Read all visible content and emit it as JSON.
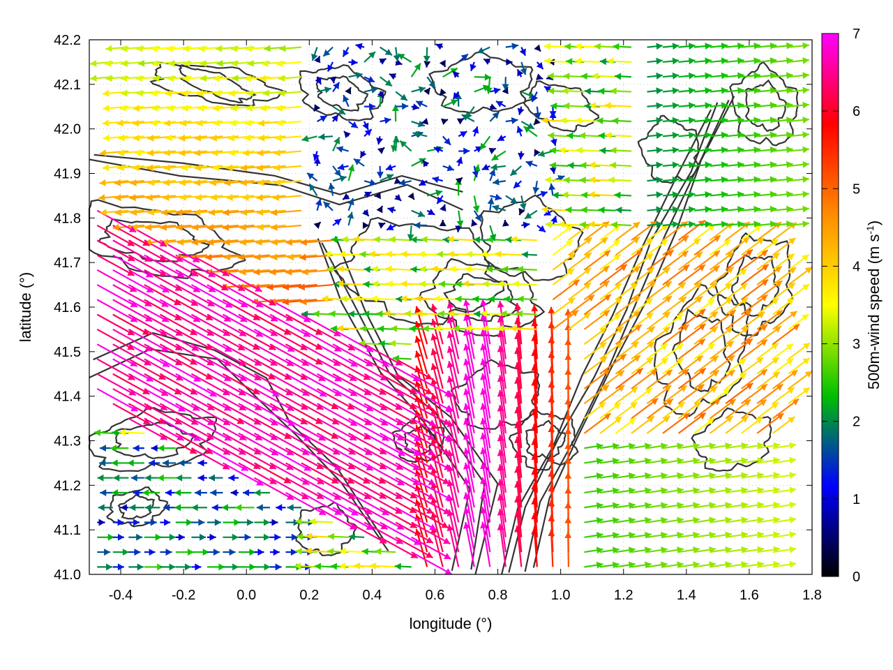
{
  "chart_data": {
    "type": "vector-field",
    "xlabel": "longitude (°)",
    "ylabel": "latitude (°)",
    "xlim": [
      -0.5,
      1.8
    ],
    "ylim": [
      41.0,
      42.2
    ],
    "xticks": [
      "-0.4",
      "-0.2",
      "0.0",
      "0.2",
      "0.4",
      "0.6",
      "0.8",
      "1.0",
      "1.2",
      "1.4",
      "1.6",
      "1.8"
    ],
    "yticks": [
      "41.0",
      "41.1",
      "41.2",
      "41.3",
      "41.4",
      "41.5",
      "41.6",
      "41.7",
      "41.8",
      "41.9",
      "42.0",
      "42.1",
      "42.2"
    ],
    "colorbar": {
      "label": "500m-wind speed (m s-1)",
      "label_main": "500m-wind speed (m s",
      "label_sup": "-1",
      "label_end": ")",
      "range": [
        0,
        7
      ],
      "ticks": [
        "0",
        "1",
        "2",
        "3",
        "4",
        "5",
        "6",
        "7"
      ],
      "colors": [
        "#000000",
        "#0000ff",
        "#00c000",
        "#ffff00",
        "#ff8c00",
        "#ff0000",
        "#ff00ff"
      ]
    },
    "grid": true,
    "series_description": "wind vectors at 500 m colored by speed, overlaid with terrain contour lines",
    "wind_regimes": [
      {
        "region": "west, north of 41.6°N",
        "direction": "westward",
        "speed_range": [
          3,
          6
        ]
      },
      {
        "region": "central band 41.3–41.7°N, -0.5–0.6°E",
        "direction": "south-eastward",
        "speed_range": [
          6,
          7
        ]
      },
      {
        "region": "south-central 0.6–1.0°E",
        "direction": "northward",
        "speed_range": [
          4,
          7
        ]
      },
      {
        "region": "east, north of 41.8°N",
        "direction": "eastward",
        "speed_range": [
          2,
          4
        ]
      },
      {
        "region": "south-east 1.0–1.8°E, 41.0–41.3°N",
        "direction": "eastward",
        "speed_range": [
          2,
          4
        ]
      },
      {
        "region": "central north 0.2–0.9°E, 41.8–42.2°N",
        "direction": "variable",
        "speed_range": [
          0,
          2
        ]
      }
    ]
  }
}
